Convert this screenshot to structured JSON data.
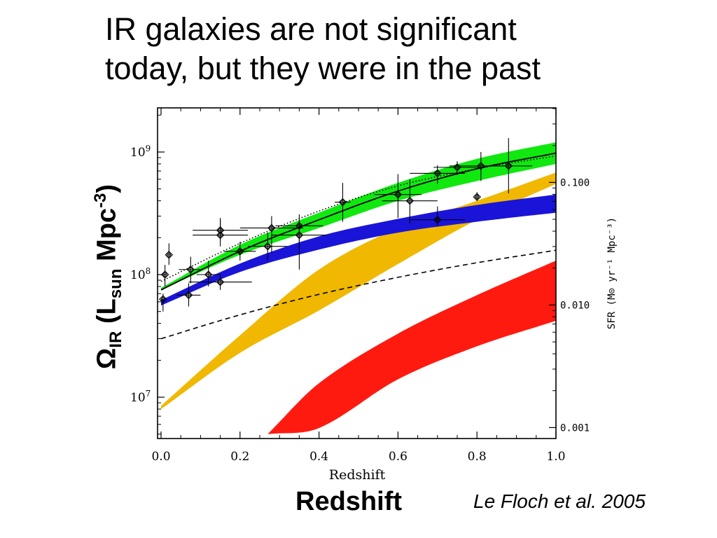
{
  "slide": {
    "title_line1": "IR galaxies are not significant",
    "title_line2": "today, but they were in the past",
    "ylabel_omega": "Ω",
    "ylabel_ir": "IR",
    "ylabel_paren": " (L",
    "ylabel_sun": "sun",
    "ylabel_mpc": " Mpc",
    "ylabel_exp": "-3",
    "ylabel_close": ")",
    "xlabel_big": "Redshift",
    "citation": "Le Floch et al. 2005"
  },
  "chart_data": {
    "type": "line",
    "xlabel": "Redshift",
    "ylabel_right": "SFR (M⊙ yr⁻¹ Mpc⁻³)",
    "xlim": [
      0,
      1.0
    ],
    "ylim": [
      5000000.0,
      2000000000.0
    ],
    "yscale": "log",
    "x_ticks": [
      "0.0",
      "0.2",
      "0.4",
      "0.6",
      "0.8",
      "1.0"
    ],
    "y_ticks_left": [
      {
        "value": 1000000000.0,
        "base": "10",
        "exp": "9"
      },
      {
        "value": 100000000.0,
        "base": "10",
        "exp": "8"
      },
      {
        "value": 10000000.0,
        "base": "10",
        "exp": "7"
      }
    ],
    "y_ticks_right": [
      {
        "value": 565000000.0,
        "label": "0.100"
      },
      {
        "value": 56500000.0,
        "label": "0.010"
      },
      {
        "value": 5650000.0,
        "label": "0.001"
      }
    ],
    "bands": [
      {
        "color": "#ff1a10",
        "x": [
          0.27,
          0.4,
          0.6,
          0.8,
          1.0
        ],
        "low": [
          5000000.0,
          5600000.0,
          14000000.0,
          26000000.0,
          42000000.0
        ],
        "high": [
          5000000.0,
          13000000.0,
          33000000.0,
          68000000.0,
          130000000.0
        ]
      },
      {
        "color": "#f0b800",
        "x": [
          0.0,
          0.2,
          0.4,
          0.6,
          0.8,
          1.0
        ],
        "low": [
          8000000.0,
          23000000.0,
          51000000.0,
          122000000.0,
          280000000.0,
          550000000.0
        ],
        "high": [
          8500000.0,
          32000000.0,
          110000000.0,
          240000000.0,
          400000000.0,
          680000000.0
        ]
      },
      {
        "color": "#1a14d8",
        "x": [
          0.0,
          0.2,
          0.4,
          0.6,
          0.8,
          1.0
        ],
        "low": [
          56000000.0,
          105000000.0,
          160000000.0,
          220000000.0,
          270000000.0,
          320000000.0
        ],
        "high": [
          62000000.0,
          123000000.0,
          205000000.0,
          285000000.0,
          370000000.0,
          450000000.0
        ]
      },
      {
        "color": "#10e810",
        "x": [
          0.0,
          0.2,
          0.4,
          0.6,
          0.8,
          1.0
        ],
        "low": [
          75000000.0,
          145000000.0,
          240000000.0,
          400000000.0,
          580000000.0,
          800000000.0
        ],
        "high": [
          78000000.0,
          175000000.0,
          320000000.0,
          560000000.0,
          880000000.0,
          1200000000.0
        ]
      }
    ],
    "lines": [
      {
        "style": "solid",
        "x": [
          0.0,
          0.2,
          0.4,
          0.6,
          0.8,
          1.0
        ],
        "y": [
          75000000.0,
          155000000.0,
          280000000.0,
          480000000.0,
          730000000.0,
          980000000.0
        ]
      },
      {
        "style": "dotted",
        "x": [
          0.0,
          0.2,
          0.4,
          0.6,
          0.8,
          1.0
        ],
        "y": [
          88000000.0,
          180000000.0,
          330000000.0,
          530000000.0,
          730000000.0,
          930000000.0
        ]
      },
      {
        "style": "dashed",
        "x": [
          0.0,
          0.2,
          0.4,
          0.6,
          0.8,
          1.0
        ],
        "y": [
          30000000.0,
          47000000.0,
          69000000.0,
          95000000.0,
          125000000.0,
          158000000.0
        ]
      }
    ],
    "points": [
      {
        "x": 0.005,
        "y": 63000000.0,
        "xerr": 0.005,
        "yerr": [
          50000000.0,
          70000000.0
        ]
      },
      {
        "x": 0.01,
        "y": 100000000.0,
        "xerr": 0.005,
        "yerr": [
          80000000.0,
          120000000.0
        ]
      },
      {
        "x": 0.02,
        "y": 145000000.0,
        "xerr": 0.005,
        "yerr": [
          120000000.0,
          180000000.0
        ]
      },
      {
        "x": 0.07,
        "y": 68000000.0,
        "xerr": 0.03,
        "yerr": [
          55000000.0,
          85000000.0
        ]
      },
      {
        "x": 0.075,
        "y": 110000000.0,
        "xerr": 0.03,
        "yerr": [
          85000000.0,
          140000000.0
        ]
      },
      {
        "x": 0.12,
        "y": 100000000.0,
        "xerr": 0.03,
        "yerr": [
          80000000.0,
          130000000.0
        ]
      },
      {
        "x": 0.15,
        "y": 87000000.0,
        "xerr": 0.08,
        "yerr": [
          75000000.0,
          100000000.0
        ]
      },
      {
        "x": 0.15,
        "y": 210000000.0,
        "xerr": 0.07,
        "yerr": [
          170000000.0,
          290000000.0
        ]
      },
      {
        "x": 0.15,
        "y": 230000000.0,
        "xerr": 0.07,
        "yerr": [
          190000000.0,
          280000000.0
        ]
      },
      {
        "x": 0.2,
        "y": 155000000.0,
        "xerr": 0.04,
        "yerr": [
          130000000.0,
          185000000.0
        ]
      },
      {
        "x": 0.27,
        "y": 170000000.0,
        "xerr": 0.05,
        "yerr": [
          130000000.0,
          220000000.0
        ]
      },
      {
        "x": 0.28,
        "y": 240000000.0,
        "xerr": 0.08,
        "yerr": [
          150000000.0,
          300000000.0
        ]
      },
      {
        "x": 0.35,
        "y": 250000000.0,
        "xerr": 0.06,
        "yerr": [
          170000000.0,
          310000000.0
        ]
      },
      {
        "x": 0.35,
        "y": 210000000.0,
        "xerr": 0.07,
        "yerr": [
          110000000.0,
          280000000.0
        ]
      },
      {
        "x": 0.46,
        "y": 390000000.0,
        "xerr": 0.02,
        "yerr": [
          270000000.0,
          560000000.0
        ]
      },
      {
        "x": 0.6,
        "y": 450000000.0,
        "xerr": 0.06,
        "yerr": [
          290000000.0,
          660000000.0
        ]
      },
      {
        "x": 0.63,
        "y": 400000000.0,
        "xerr": 0.07,
        "yerr": [
          260000000.0,
          600000000.0
        ]
      },
      {
        "x": 0.7,
        "y": 670000000.0,
        "xerr": 0.07,
        "yerr": [
          550000000.0,
          780000000.0
        ]
      },
      {
        "x": 0.7,
        "y": 280000000.0,
        "xerr": 0.07,
        "yerr": [
          250000000.0,
          360000000.0
        ]
      },
      {
        "x": 0.75,
        "y": 750000000.0,
        "xerr": 0.06,
        "yerr": [
          650000000.0,
          840000000.0
        ]
      },
      {
        "x": 0.8,
        "y": 430000000.0,
        "xerr": 0.005,
        "yerr": [
          400000000.0,
          470000000.0
        ]
      },
      {
        "x": 0.81,
        "y": 770000000.0,
        "xerr": 0.08,
        "yerr": [
          580000000.0,
          1000000000.0
        ]
      },
      {
        "x": 0.88,
        "y": 770000000.0,
        "xerr": 0.06,
        "yerr": [
          460000000.0,
          1300000000.0
        ]
      }
    ]
  }
}
